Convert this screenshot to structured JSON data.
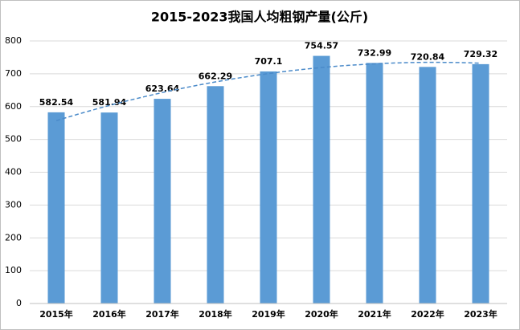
{
  "chart_data": {
    "type": "bar",
    "title": "2015-2023我国人均粗钢产量(公斤)",
    "categories": [
      "2015年",
      "2016年",
      "2017年",
      "2018年",
      "2019年",
      "2020年",
      "2021年",
      "2022年",
      "2023年"
    ],
    "values": [
      582.54,
      581.94,
      623.64,
      662.29,
      707.1,
      754.57,
      732.99,
      720.84,
      729.32
    ],
    "color": "#5b9bd5",
    "ylim": [
      0,
      800
    ],
    "yticks": [
      0,
      100,
      200,
      300,
      400,
      500,
      600,
      700,
      800
    ],
    "grid": true
  }
}
